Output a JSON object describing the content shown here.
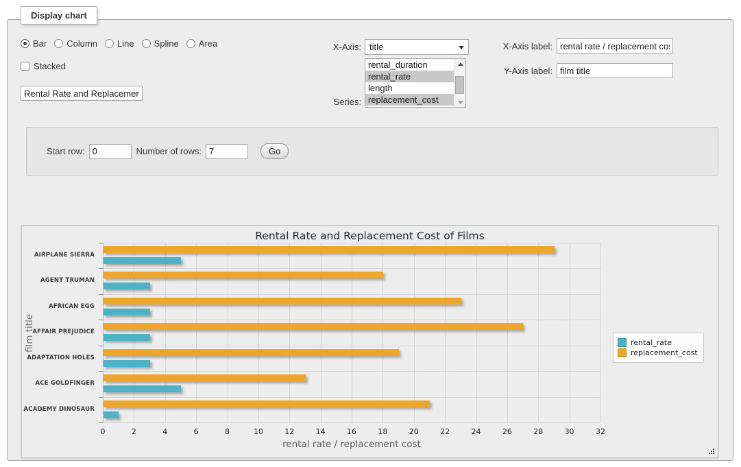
{
  "panel": {
    "legend": "Display chart"
  },
  "chart_type_options": [
    {
      "label": "Bar",
      "selected": true
    },
    {
      "label": "Column",
      "selected": false
    },
    {
      "label": "Line",
      "selected": false
    },
    {
      "label": "Spline",
      "selected": false
    },
    {
      "label": "Area",
      "selected": false
    }
  ],
  "stacked": {
    "label": "Stacked",
    "checked": false
  },
  "title_input": {
    "value": "Rental Rate and Replacement Cost of Films"
  },
  "x_axis": {
    "label": "X-Axis:",
    "selected": "title"
  },
  "series_select": {
    "label": "Series:",
    "options": [
      {
        "label": "rental_duration",
        "selected": false
      },
      {
        "label": "rental_rate",
        "selected": true
      },
      {
        "label": "length",
        "selected": false
      },
      {
        "label": "replacement_cost",
        "selected": true
      }
    ]
  },
  "x_axis_label": {
    "label": "X-Axis label:",
    "value": "rental rate / replacement cost"
  },
  "y_axis_label": {
    "label": "Y-Axis label:",
    "value": "film title"
  },
  "rows_form": {
    "start_row_label": "Start row:",
    "start_row_value": "0",
    "num_rows_label": "Number of rows:",
    "num_rows_value": "7",
    "go_label": "Go"
  },
  "chart_data": {
    "type": "bar",
    "orientation": "horizontal",
    "title": "Rental Rate and Replacement Cost of Films",
    "xlabel": "rental rate / replacement cost",
    "ylabel": "film title",
    "categories": [
      "AIRPLANE SIERRA",
      "AGENT TRUMAN",
      "AFRICAN EGG",
      "AFFAIR PREJUDICE",
      "ADAPTATION HOLES",
      "ACE GOLDFINGER",
      "ACADEMY DINOSAUR"
    ],
    "series": [
      {
        "name": "rental_rate",
        "color": "#4db2c4",
        "values": [
          4.99,
          2.99,
          2.99,
          2.99,
          2.99,
          4.99,
          0.99
        ]
      },
      {
        "name": "replacement_cost",
        "color": "#eda62b",
        "values": [
          28.99,
          17.99,
          22.99,
          26.99,
          18.99,
          12.99,
          20.99
        ]
      }
    ],
    "xlim": [
      0,
      32
    ],
    "xticks": [
      0,
      2,
      4,
      6,
      8,
      10,
      12,
      14,
      16,
      18,
      20,
      22,
      24,
      26,
      28,
      30,
      32
    ],
    "grid": true,
    "legend_position": "right"
  }
}
